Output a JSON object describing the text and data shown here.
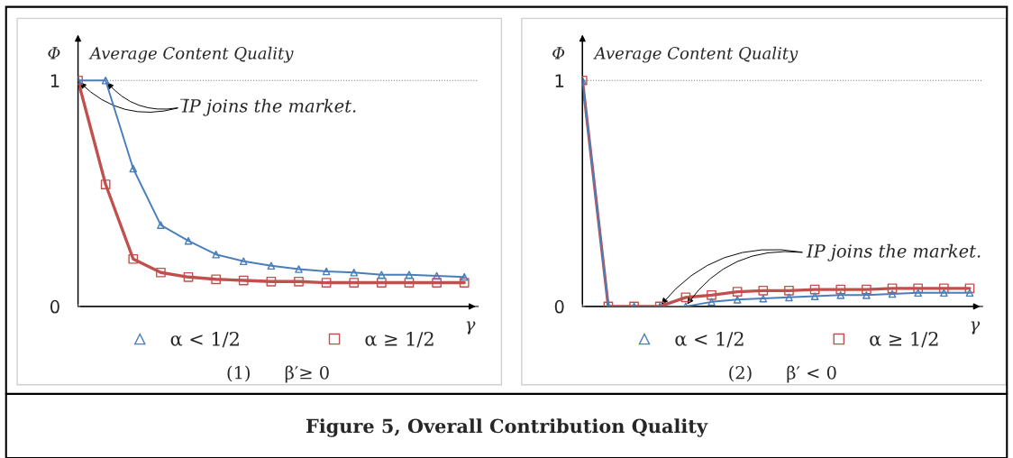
{
  "chart_data": [
    {
      "type": "line",
      "ylabel": "Φ",
      "xlabel": "γ",
      "subtitle": "(1)      β′≥ 0",
      "categories": [
        null,
        null,
        null,
        null,
        null,
        null,
        null,
        null,
        null,
        null,
        null,
        null,
        null,
        null,
        null
      ],
      "series": [
        {
          "name": "α < 1/2",
          "color": "#4a7ebb",
          "marker": "triangle",
          "values": [
            1,
            1,
            0.61,
            0.36,
            0.29,
            0.23,
            0.2,
            0.18,
            0.165,
            0.155,
            0.15,
            0.14,
            0.14,
            0.135,
            0.13
          ]
        },
        {
          "name": "α ≥ 1/2",
          "color": "#c0504d",
          "marker": "square",
          "values": [
            1,
            0.54,
            0.21,
            0.15,
            0.13,
            0.12,
            0.115,
            0.11,
            0.11,
            0.105,
            0.105,
            0.105,
            0.105,
            0.105,
            0.105
          ]
        }
      ],
      "ylim": [
        0,
        1.19
      ],
      "yticks": [
        0,
        1
      ],
      "tick_labels": "y",
      "legend": "bottom",
      "ref_lines": [
        {
          "axis": "y",
          "value": 1,
          "color": "#7f7f7f",
          "line_style": "dotted"
        }
      ],
      "annotations": [
        "Average Content Quality",
        "I̅P joins the market.",
        "Figure 5, Overall Contribution Quality"
      ]
    },
    {
      "type": "line",
      "ylabel": "Φ",
      "xlabel": "γ",
      "subtitle": "(2)      β′ < 0",
      "categories": [
        null,
        null,
        null,
        null,
        null,
        null,
        null,
        null,
        null,
        null,
        null,
        null,
        null,
        null,
        null,
        null
      ],
      "series": [
        {
          "name": "α < 1/2",
          "color": "#4a7ebb",
          "marker": "triangle",
          "values": [
            1,
            0,
            0,
            0,
            0,
            0.02,
            0.03,
            0.035,
            0.04,
            0.045,
            0.05,
            0.05,
            0.055,
            0.06,
            0.06,
            0.06
          ]
        },
        {
          "name": "α ≥ 1/2",
          "color": "#c0504d",
          "marker": "square",
          "values": [
            1,
            0,
            0,
            0,
            0.04,
            0.05,
            0.065,
            0.07,
            0.07,
            0.075,
            0.075,
            0.075,
            0.08,
            0.08,
            0.08,
            0.08
          ]
        }
      ],
      "ylim": [
        0,
        1.19
      ],
      "yticks": [
        0,
        1
      ],
      "tick_labels": "y",
      "legend": "bottom",
      "ref_lines": [
        {
          "axis": "y",
          "value": 1,
          "color": "#7f7f7f",
          "line_style": "dotted"
        }
      ],
      "annotations": [
        "Average Content Quality",
        "IP joins the market."
      ]
    }
  ]
}
